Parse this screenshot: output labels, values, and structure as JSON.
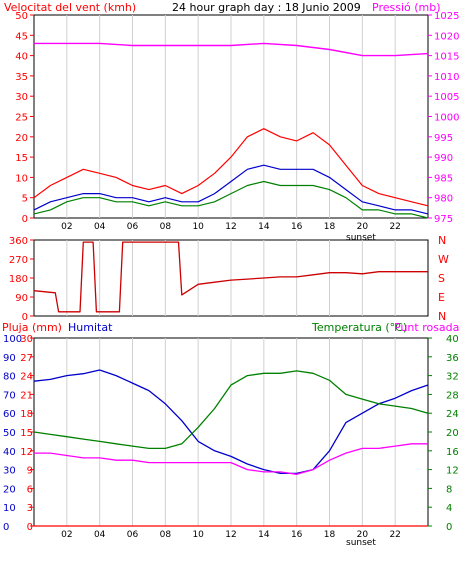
{
  "chart_data": [
    {
      "type": "line",
      "title": "24 hour graph day : 18 Junio 2009",
      "left_axis_label": "Velocitat del vent (kmh)",
      "right_axis_label": "Pressió (mb)",
      "x_ticks": [
        "02",
        "04",
        "06",
        "08",
        "10",
        "12",
        "14",
        "16",
        "18",
        "20",
        "22"
      ],
      "sunset_label": "sunset",
      "left_ticks": [
        "0",
        "5",
        "10",
        "15",
        "20",
        "25",
        "30",
        "35",
        "40",
        "45",
        "50"
      ],
      "right_ticks": [
        "975",
        "980",
        "985",
        "990",
        "995",
        "1000",
        "1005",
        "1010",
        "1015",
        "1020",
        "1025"
      ],
      "ylim_left": [
        0,
        50
      ],
      "ylim_right": [
        975,
        1025
      ],
      "colors": {
        "gust": "#ff0000",
        "avg": "#0000cc",
        "wind": "#008000",
        "pressure": "#ff00ff",
        "grid": "#d0d0d0"
      },
      "series": [
        {
          "key": "gust",
          "x": [
            0,
            1,
            2,
            3,
            4,
            5,
            6,
            7,
            8,
            9,
            10,
            11,
            12,
            13,
            14,
            15,
            16,
            17,
            18,
            19,
            20,
            21,
            22,
            23,
            24
          ],
          "values": [
            5,
            8,
            10,
            12,
            11,
            10,
            8,
            7,
            8,
            6,
            8,
            11,
            15,
            20,
            22,
            20,
            19,
            21,
            18,
            13,
            8,
            6,
            5,
            4,
            3
          ]
        },
        {
          "key": "avg",
          "x": [
            0,
            1,
            2,
            3,
            4,
            5,
            6,
            7,
            8,
            9,
            10,
            11,
            12,
            13,
            14,
            15,
            16,
            17,
            18,
            19,
            20,
            21,
            22,
            23,
            24
          ],
          "values": [
            2,
            4,
            5,
            6,
            6,
            5,
            5,
            4,
            5,
            4,
            4,
            6,
            9,
            12,
            13,
            12,
            12,
            12,
            10,
            7,
            4,
            3,
            2,
            2,
            1
          ]
        },
        {
          "key": "wind",
          "x": [
            0,
            1,
            2,
            3,
            4,
            5,
            6,
            7,
            8,
            9,
            10,
            11,
            12,
            13,
            14,
            15,
            16,
            17,
            18,
            19,
            20,
            21,
            22,
            23,
            24
          ],
          "values": [
            1,
            2,
            4,
            5,
            5,
            4,
            4,
            3,
            4,
            3,
            3,
            4,
            6,
            8,
            9,
            8,
            8,
            8,
            7,
            5,
            2,
            2,
            1,
            1,
            0
          ]
        },
        {
          "key": "pressure",
          "x": [
            0,
            2,
            4,
            6,
            8,
            10,
            12,
            14,
            16,
            18,
            20,
            22,
            24
          ],
          "values": [
            1018,
            1018,
            1018,
            1017.5,
            1017.5,
            1017.5,
            1017.5,
            1018,
            1017.5,
            1016.5,
            1015,
            1015,
            1015.5
          ]
        }
      ]
    },
    {
      "type": "line",
      "left_ticks": [
        "0",
        "90",
        "180",
        "270",
        "360"
      ],
      "compass_labels": [
        "N",
        "W",
        "S",
        "E",
        "N"
      ],
      "ylim": [
        0,
        360
      ],
      "series": [
        {
          "key": "direction",
          "points": [
            [
              0,
              120
            ],
            [
              1.3,
              110
            ],
            [
              1.5,
              20
            ],
            [
              2.8,
              20
            ],
            [
              3,
              350
            ],
            [
              3.6,
              350
            ],
            [
              3.8,
              20
            ],
            [
              5.2,
              20
            ],
            [
              5.4,
              350
            ],
            [
              8.8,
              350
            ],
            [
              9,
              100
            ],
            [
              9.6,
              130
            ],
            [
              10,
              150
            ],
            [
              11,
              160
            ],
            [
              12,
              170
            ],
            [
              13,
              175
            ],
            [
              14,
              180
            ],
            [
              15,
              185
            ],
            [
              16,
              185
            ],
            [
              17,
              195
            ],
            [
              18,
              205
            ],
            [
              19,
              205
            ],
            [
              20,
              200
            ],
            [
              21,
              210
            ],
            [
              22,
              210
            ],
            [
              24,
              210
            ]
          ]
        }
      ]
    },
    {
      "type": "line",
      "left_label_1": "Pluja (mm)",
      "left_label_2": "Humitat",
      "right_label_1": "Temperatura (°C)",
      "right_label_2": "Punt rosada",
      "rain_ticks": [
        "0",
        "3",
        "6",
        "9",
        "12",
        "15",
        "18",
        "21",
        "24",
        "27",
        "30"
      ],
      "humidity_ticks": [
        "0",
        "10",
        "20",
        "30",
        "40",
        "50",
        "60",
        "70",
        "80",
        "90",
        "100"
      ],
      "temp_ticks": [
        "0",
        "4",
        "8",
        "12",
        "16",
        "20",
        "24",
        "28",
        "32",
        "36",
        "40"
      ],
      "ylim_rain": [
        0,
        30
      ],
      "ylim_humidity": [
        0,
        100
      ],
      "ylim_temp": [
        0,
        40
      ],
      "series": [
        {
          "key": "humidity",
          "x": [
            0,
            1,
            2,
            3,
            4,
            5,
            6,
            7,
            8,
            9,
            10,
            11,
            12,
            13,
            14,
            15,
            16,
            17,
            18,
            19,
            20,
            21,
            22,
            23,
            24
          ],
          "values": [
            77,
            78,
            80,
            81,
            83,
            80,
            76,
            72,
            65,
            56,
            45,
            40,
            37,
            33,
            30,
            28,
            28,
            30,
            40,
            55,
            60,
            65,
            68,
            72,
            75
          ]
        },
        {
          "key": "temperature",
          "x": [
            0,
            1,
            2,
            3,
            4,
            5,
            6,
            7,
            8,
            9,
            10,
            11,
            12,
            13,
            14,
            15,
            16,
            17,
            18,
            19,
            20,
            21,
            22,
            23,
            24
          ],
          "values": [
            20,
            19.5,
            19,
            18.5,
            18,
            17.5,
            17,
            16.5,
            16.5,
            17.5,
            21,
            25,
            30,
            32,
            32.5,
            32.5,
            33,
            32.5,
            31,
            28,
            27,
            26,
            25.5,
            25,
            24
          ]
        },
        {
          "key": "dewpoint",
          "x": [
            0,
            1,
            2,
            3,
            4,
            5,
            6,
            7,
            8,
            9,
            10,
            11,
            12,
            13,
            14,
            15,
            16,
            17,
            18,
            19,
            20,
            21,
            22,
            23,
            24
          ],
          "values": [
            15.5,
            15.5,
            15,
            14.5,
            14.5,
            14,
            14,
            13.5,
            13.5,
            13.5,
            13.5,
            13.5,
            13.5,
            12,
            11.5,
            11.5,
            11,
            12,
            14,
            15.5,
            16.5,
            16.5,
            17,
            17.5,
            17.5
          ]
        },
        {
          "key": "rain",
          "x": [
            0,
            24
          ],
          "values": [
            0,
            0
          ]
        }
      ]
    }
  ]
}
